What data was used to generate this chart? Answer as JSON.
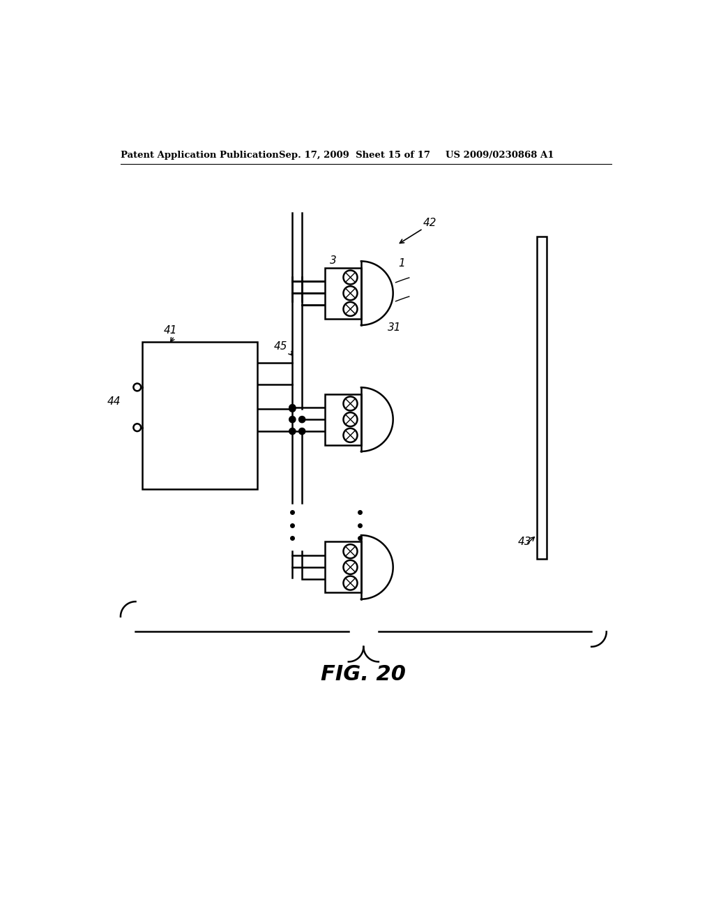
{
  "title": "FIG. 20",
  "header_left": "Patent Application Publication",
  "header_mid": "Sep. 17, 2009  Sheet 15 of 17",
  "header_right": "US 2009/0230868 A1",
  "bg_color": "#ffffff",
  "line_color": "#000000",
  "label_41": "41",
  "label_42": "42",
  "label_43": "43",
  "label_44": "44",
  "label_45": "45",
  "label_3": "3",
  "label_1": "1",
  "label_31": "31"
}
